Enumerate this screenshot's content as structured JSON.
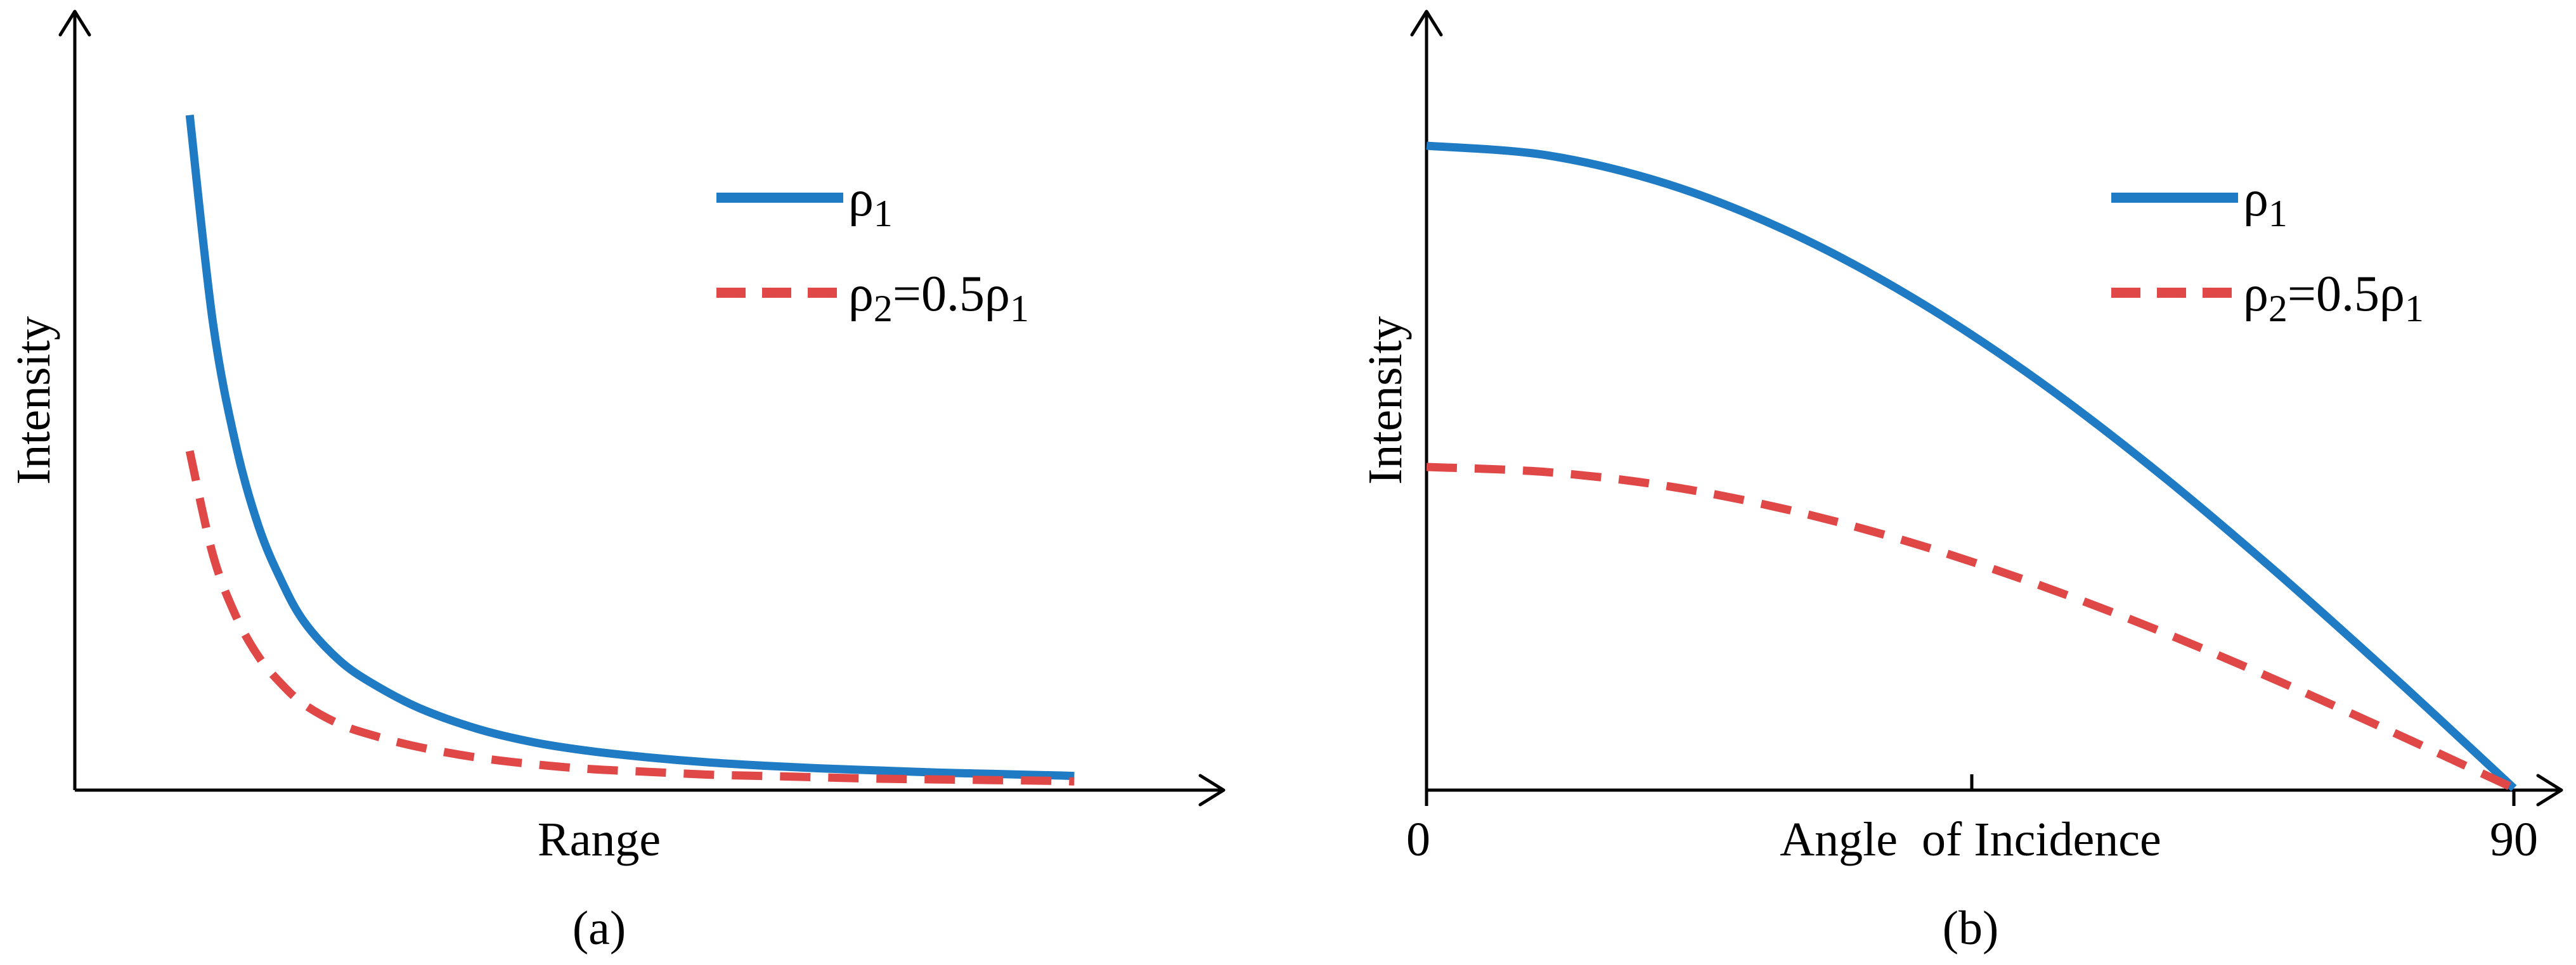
{
  "colors": {
    "rho1": "#1f7bc4",
    "rho2": "#e04848",
    "axis": "#000000"
  },
  "chart_data": [
    {
      "type": "line",
      "caption": "(a)",
      "xlabel": "Range",
      "ylabel": "Intensity",
      "grid": false,
      "legend_position": "top-right",
      "xlim": [
        0,
        1
      ],
      "ylim": [
        0,
        1
      ],
      "series": [
        {
          "name": "ρ1",
          "name_base": "ρ",
          "name_sub": "1",
          "style": "solid",
          "color": "#1f7bc4",
          "x": [
            0.1,
            0.12,
            0.14,
            0.16,
            0.18,
            0.2,
            0.23,
            0.26,
            0.3,
            0.35,
            0.4,
            0.45,
            0.5,
            0.55,
            0.6,
            0.65,
            0.7,
            0.75,
            0.8,
            0.85,
            0.87
          ],
          "y": [
            0.98,
            0.68,
            0.5,
            0.38,
            0.3,
            0.24,
            0.185,
            0.15,
            0.115,
            0.085,
            0.065,
            0.052,
            0.043,
            0.036,
            0.031,
            0.027,
            0.024,
            0.021,
            0.019,
            0.017,
            0.016
          ]
        },
        {
          "name": "ρ2=0.5ρ1",
          "name_base": "ρ",
          "name_sub": "2",
          "name_rest": "=0.5ρ",
          "name_rest_sub": "1",
          "style": "dashed",
          "color": "#e04848",
          "x": [
            0.1,
            0.12,
            0.14,
            0.16,
            0.18,
            0.2,
            0.23,
            0.26,
            0.3,
            0.35,
            0.4,
            0.45,
            0.5,
            0.55,
            0.6,
            0.65,
            0.7,
            0.75,
            0.8,
            0.85,
            0.87
          ],
          "y": [
            0.49,
            0.34,
            0.25,
            0.19,
            0.15,
            0.12,
            0.092,
            0.075,
            0.058,
            0.043,
            0.033,
            0.026,
            0.022,
            0.018,
            0.016,
            0.014,
            0.012,
            0.011,
            0.01,
            0.009,
            0.008
          ]
        }
      ]
    },
    {
      "type": "line",
      "caption": "(b)",
      "xlabel": "Angle  of Incidence",
      "ylabel": "Intensity",
      "grid": false,
      "legend_position": "top-right",
      "xlim": [
        0,
        90
      ],
      "ylim": [
        0,
        1
      ],
      "x_ticks": [
        0,
        90
      ],
      "x_tick_labels": [
        "0",
        "90"
      ],
      "series": [
        {
          "name": "ρ1",
          "name_base": "ρ",
          "name_sub": "1",
          "style": "solid",
          "color": "#1f7bc4",
          "x": [
            0,
            10,
            20,
            30,
            40,
            50,
            60,
            70,
            80,
            90
          ],
          "y": [
            1.0,
            0.985,
            0.94,
            0.866,
            0.766,
            0.643,
            0.5,
            0.342,
            0.174,
            0.0
          ]
        },
        {
          "name": "ρ2=0.5ρ1",
          "name_base": "ρ",
          "name_sub": "2",
          "name_rest": "=0.5ρ",
          "name_rest_sub": "1",
          "style": "dashed",
          "color": "#e04848",
          "x": [
            0,
            10,
            20,
            30,
            40,
            50,
            60,
            70,
            80,
            90
          ],
          "y": [
            0.5,
            0.492,
            0.47,
            0.433,
            0.383,
            0.321,
            0.25,
            0.171,
            0.087,
            0.0
          ]
        }
      ]
    }
  ]
}
